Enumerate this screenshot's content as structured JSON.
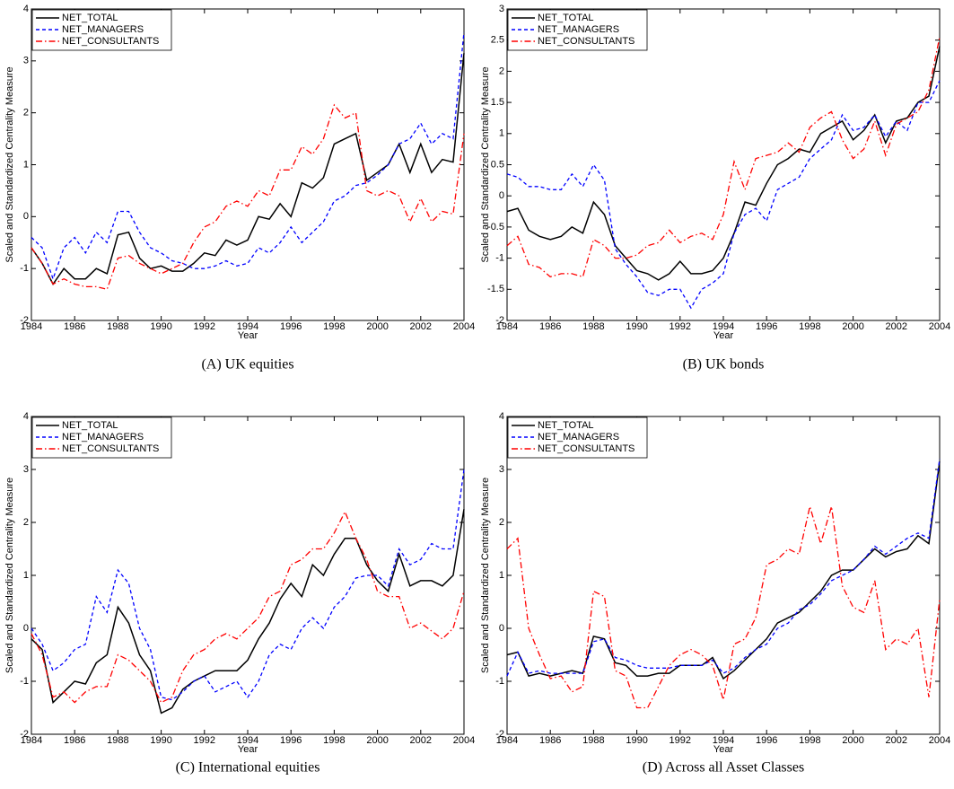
{
  "chart_data": [
    {
      "type": "line",
      "caption": "(A) UK equities",
      "xlabel": "Year",
      "ylabel": "Scaled and Standardized Centrality Measure",
      "legend": "upper left",
      "x": [
        1984,
        1984.5,
        1985,
        1985.5,
        1986,
        1986.5,
        1987,
        1987.5,
        1988,
        1988.5,
        1989,
        1989.5,
        1990,
        1990.5,
        1991,
        1991.5,
        1992,
        1992.5,
        1993,
        1993.5,
        1994,
        1994.5,
        1995,
        1995.5,
        1996,
        1996.5,
        1997,
        1997.5,
        1998,
        1998.5,
        1999,
        1999.5,
        2000,
        2000.5,
        2001,
        2001.5,
        2002,
        2002.5,
        2003,
        2003.5,
        2004
      ],
      "xlim": [
        1984,
        2004
      ],
      "xticks": [
        1984,
        1986,
        1988,
        1990,
        1992,
        1994,
        1996,
        1998,
        2000,
        2002,
        2004
      ],
      "ylim": [
        -2,
        4
      ],
      "yticks": [
        -2,
        -1,
        0,
        1,
        2,
        3,
        4
      ],
      "series": [
        {
          "name": "NET_TOTAL",
          "color": "#000000",
          "style": "solid",
          "values": [
            -0.6,
            -0.9,
            -1.3,
            -1.0,
            -1.2,
            -1.2,
            -1.0,
            -1.1,
            -0.35,
            -0.3,
            -0.8,
            -1.0,
            -0.95,
            -1.05,
            -1.05,
            -0.9,
            -0.7,
            -0.75,
            -0.45,
            -0.55,
            -0.45,
            0.0,
            -0.05,
            0.25,
            0.0,
            0.65,
            0.55,
            0.75,
            1.4,
            1.5,
            1.6,
            0.7,
            0.85,
            1.0,
            1.4,
            0.85,
            1.4,
            0.85,
            1.1,
            1.05,
            3.15
          ]
        },
        {
          "name": "NET_MANAGERS",
          "color": "#0000ff",
          "style": "dashed",
          "values": [
            -0.4,
            -0.6,
            -1.2,
            -0.6,
            -0.4,
            -0.7,
            -0.3,
            -0.5,
            0.1,
            0.1,
            -0.3,
            -0.6,
            -0.7,
            -0.85,
            -0.9,
            -1.0,
            -1.0,
            -0.95,
            -0.85,
            -0.95,
            -0.9,
            -0.6,
            -0.7,
            -0.5,
            -0.2,
            -0.5,
            -0.3,
            -0.1,
            0.3,
            0.4,
            0.6,
            0.65,
            0.8,
            1.0,
            1.4,
            1.5,
            1.8,
            1.4,
            1.6,
            1.5,
            3.55
          ]
        },
        {
          "name": "NET_CONSULTANTS",
          "color": "#ff0000",
          "style": "dashdot",
          "values": [
            -0.6,
            -0.9,
            -1.3,
            -1.2,
            -1.3,
            -1.35,
            -1.35,
            -1.4,
            -0.8,
            -0.75,
            -0.9,
            -1.0,
            -1.1,
            -1.0,
            -0.9,
            -0.5,
            -0.2,
            -0.1,
            0.2,
            0.3,
            0.2,
            0.5,
            0.4,
            0.9,
            0.9,
            1.35,
            1.2,
            1.5,
            2.15,
            1.9,
            2.0,
            0.5,
            0.4,
            0.5,
            0.4,
            -0.1,
            0.35,
            -0.1,
            0.1,
            0.05,
            1.6
          ]
        }
      ]
    },
    {
      "type": "line",
      "caption": "(B) UK bonds",
      "xlabel": "Year",
      "ylabel": "Scaled and Standardized Centrality Measure",
      "legend": "upper left",
      "x": [
        1984,
        1984.5,
        1985,
        1985.5,
        1986,
        1986.5,
        1987,
        1987.5,
        1988,
        1988.5,
        1989,
        1989.5,
        1990,
        1990.5,
        1991,
        1991.5,
        1992,
        1992.5,
        1993,
        1993.5,
        1994,
        1994.5,
        1995,
        1995.5,
        1996,
        1996.5,
        1997,
        1997.5,
        1998,
        1998.5,
        1999,
        1999.5,
        2000,
        2000.5,
        2001,
        2001.5,
        2002,
        2002.5,
        2003,
        2003.5,
        2004
      ],
      "xlim": [
        1984,
        2004
      ],
      "xticks": [
        1984,
        1986,
        1988,
        1990,
        1992,
        1994,
        1996,
        1998,
        2000,
        2002,
        2004
      ],
      "ylim": [
        -2,
        3
      ],
      "yticks": [
        -2,
        -1.5,
        -1,
        -0.5,
        0,
        0.5,
        1,
        1.5,
        2,
        2.5,
        3
      ],
      "series": [
        {
          "name": "NET_TOTAL",
          "color": "#000000",
          "style": "solid",
          "values": [
            -0.25,
            -0.2,
            -0.55,
            -0.65,
            -0.7,
            -0.65,
            -0.5,
            -0.6,
            -0.1,
            -0.3,
            -0.8,
            -1.0,
            -1.2,
            -1.25,
            -1.35,
            -1.25,
            -1.05,
            -1.25,
            -1.25,
            -1.2,
            -1.0,
            -0.6,
            -0.1,
            -0.15,
            0.2,
            0.5,
            0.6,
            0.75,
            0.7,
            1.0,
            1.1,
            1.2,
            0.9,
            1.05,
            1.3,
            0.85,
            1.2,
            1.25,
            1.5,
            1.6,
            2.4
          ]
        },
        {
          "name": "NET_MANAGERS",
          "color": "#0000ff",
          "style": "dashed",
          "values": [
            0.35,
            0.3,
            0.15,
            0.15,
            0.1,
            0.1,
            0.35,
            0.15,
            0.5,
            0.25,
            -0.85,
            -1.1,
            -1.3,
            -1.55,
            -1.6,
            -1.5,
            -1.5,
            -1.8,
            -1.5,
            -1.4,
            -1.25,
            -0.6,
            -0.3,
            -0.2,
            -0.4,
            0.1,
            0.2,
            0.3,
            0.6,
            0.75,
            0.9,
            1.3,
            1.05,
            1.1,
            1.3,
            0.95,
            1.2,
            1.05,
            1.5,
            1.5,
            1.85
          ]
        },
        {
          "name": "NET_CONSULTANTS",
          "color": "#ff0000",
          "style": "dashdot",
          "values": [
            -0.8,
            -0.65,
            -1.1,
            -1.15,
            -1.3,
            -1.25,
            -1.25,
            -1.3,
            -0.7,
            -0.8,
            -1.0,
            -1.0,
            -0.95,
            -0.8,
            -0.75,
            -0.55,
            -0.75,
            -0.65,
            -0.6,
            -0.7,
            -0.3,
            0.55,
            0.1,
            0.6,
            0.65,
            0.7,
            0.85,
            0.7,
            1.1,
            1.25,
            1.35,
            0.9,
            0.6,
            0.75,
            1.2,
            0.65,
            1.15,
            1.25,
            1.35,
            1.7,
            2.55
          ]
        }
      ]
    },
    {
      "type": "line",
      "caption": "(C) International equities",
      "xlabel": "Year",
      "ylabel": "Scaled and Standardized Centrality Measure",
      "legend": "upper left",
      "x": [
        1984,
        1984.5,
        1985,
        1985.5,
        1986,
        1986.5,
        1987,
        1987.5,
        1988,
        1988.5,
        1989,
        1989.5,
        1990,
        1990.5,
        1991,
        1991.5,
        1992,
        1992.5,
        1993,
        1993.5,
        1994,
        1994.5,
        1995,
        1995.5,
        1996,
        1996.5,
        1997,
        1997.5,
        1998,
        1998.5,
        1999,
        1999.5,
        2000,
        2000.5,
        2001,
        2001.5,
        2002,
        2002.5,
        2003,
        2003.5,
        2004
      ],
      "xlim": [
        1984,
        2004
      ],
      "xticks": [
        1984,
        1986,
        1988,
        1990,
        1992,
        1994,
        1996,
        1998,
        2000,
        2002,
        2004
      ],
      "ylim": [
        -2,
        4
      ],
      "yticks": [
        -2,
        -1,
        0,
        1,
        2,
        3,
        4
      ],
      "series": [
        {
          "name": "NET_TOTAL",
          "color": "#000000",
          "style": "solid",
          "values": [
            -0.2,
            -0.4,
            -1.4,
            -1.2,
            -1.0,
            -1.05,
            -0.65,
            -0.5,
            0.4,
            0.1,
            -0.5,
            -0.8,
            -1.6,
            -1.5,
            -1.15,
            -1.0,
            -0.9,
            -0.8,
            -0.8,
            -0.8,
            -0.6,
            -0.2,
            0.1,
            0.55,
            0.85,
            0.6,
            1.2,
            1.0,
            1.4,
            1.7,
            1.7,
            1.2,
            0.9,
            0.7,
            1.4,
            0.8,
            0.9,
            0.9,
            0.8,
            1.0,
            2.25
          ]
        },
        {
          "name": "NET_MANAGERS",
          "color": "#0000ff",
          "style": "dashed",
          "values": [
            0.0,
            -0.3,
            -0.8,
            -0.65,
            -0.4,
            -0.3,
            0.6,
            0.3,
            1.1,
            0.85,
            0.0,
            -0.4,
            -1.3,
            -1.35,
            -1.2,
            -1.0,
            -0.9,
            -1.2,
            -1.1,
            -1.0,
            -1.3,
            -1.0,
            -0.5,
            -0.3,
            -0.4,
            0.0,
            0.2,
            0.0,
            0.4,
            0.6,
            0.95,
            1.0,
            1.0,
            0.8,
            1.5,
            1.2,
            1.3,
            1.6,
            1.5,
            1.5,
            3.0
          ]
        },
        {
          "name": "NET_CONSULTANTS",
          "color": "#ff0000",
          "style": "dashdot",
          "values": [
            -0.1,
            -0.5,
            -1.3,
            -1.2,
            -1.4,
            -1.2,
            -1.1,
            -1.1,
            -0.5,
            -0.6,
            -0.8,
            -1.0,
            -1.4,
            -1.3,
            -0.8,
            -0.5,
            -0.4,
            -0.2,
            -0.1,
            -0.2,
            0.0,
            0.2,
            0.6,
            0.7,
            1.2,
            1.3,
            1.5,
            1.5,
            1.8,
            2.2,
            1.7,
            1.3,
            0.7,
            0.6,
            0.6,
            0.0,
            0.1,
            -0.05,
            -0.2,
            0.0,
            0.7
          ]
        }
      ]
    },
    {
      "type": "line",
      "caption": "(D) Across all Asset Classes",
      "xlabel": "Year",
      "ylabel": "Scaled and Standardized Centrality Measure",
      "legend": "upper left",
      "x": [
        1984,
        1984.5,
        1985,
        1985.5,
        1986,
        1986.5,
        1987,
        1987.5,
        1988,
        1988.5,
        1989,
        1989.5,
        1990,
        1990.5,
        1991,
        1991.5,
        1992,
        1992.5,
        1993,
        1993.5,
        1994,
        1994.5,
        1995,
        1995.5,
        1996,
        1996.5,
        1997,
        1997.5,
        1998,
        1998.5,
        1999,
        1999.5,
        2000,
        2000.5,
        2001,
        2001.5,
        2002,
        2002.5,
        2003,
        2003.5,
        2004
      ],
      "xlim": [
        1984,
        2004
      ],
      "xticks": [
        1984,
        1986,
        1988,
        1990,
        1992,
        1994,
        1996,
        1998,
        2000,
        2002,
        2004
      ],
      "ylim": [
        -2,
        4
      ],
      "yticks": [
        -2,
        -1,
        0,
        1,
        2,
        3,
        4
      ],
      "series": [
        {
          "name": "NET_TOTAL",
          "color": "#000000",
          "style": "solid",
          "values": [
            -0.5,
            -0.45,
            -0.9,
            -0.85,
            -0.9,
            -0.85,
            -0.8,
            -0.85,
            -0.15,
            -0.2,
            -0.65,
            -0.7,
            -0.9,
            -0.9,
            -0.85,
            -0.85,
            -0.7,
            -0.7,
            -0.7,
            -0.55,
            -0.95,
            -0.8,
            -0.6,
            -0.4,
            -0.2,
            0.1,
            0.2,
            0.3,
            0.5,
            0.7,
            1.0,
            1.1,
            1.1,
            1.3,
            1.5,
            1.35,
            1.45,
            1.5,
            1.75,
            1.6,
            3.15
          ]
        },
        {
          "name": "NET_MANAGERS",
          "color": "#0000ff",
          "style": "dashed",
          "values": [
            -0.9,
            -0.45,
            -0.85,
            -0.8,
            -0.85,
            -0.85,
            -0.85,
            -0.85,
            -0.25,
            -0.2,
            -0.55,
            -0.6,
            -0.7,
            -0.75,
            -0.75,
            -0.75,
            -0.7,
            -0.7,
            -0.7,
            -0.6,
            -0.85,
            -0.75,
            -0.55,
            -0.4,
            -0.3,
            0.0,
            0.1,
            0.35,
            0.45,
            0.65,
            0.9,
            1.0,
            1.1,
            1.3,
            1.55,
            1.4,
            1.55,
            1.7,
            1.8,
            1.7,
            3.2
          ]
        },
        {
          "name": "NET_CONSULTANTS",
          "color": "#ff0000",
          "style": "dashdot",
          "values": [
            1.5,
            1.7,
            0.0,
            -0.5,
            -0.95,
            -0.9,
            -1.2,
            -1.1,
            0.7,
            0.6,
            -0.8,
            -0.9,
            -1.5,
            -1.5,
            -1.1,
            -0.7,
            -0.5,
            -0.4,
            -0.5,
            -0.7,
            -1.35,
            -0.3,
            -0.2,
            0.2,
            1.2,
            1.3,
            1.5,
            1.4,
            2.3,
            1.6,
            2.3,
            0.8,
            0.4,
            0.3,
            0.9,
            -0.4,
            -0.2,
            -0.3,
            0.0,
            -1.3,
            0.55
          ]
        }
      ]
    }
  ]
}
